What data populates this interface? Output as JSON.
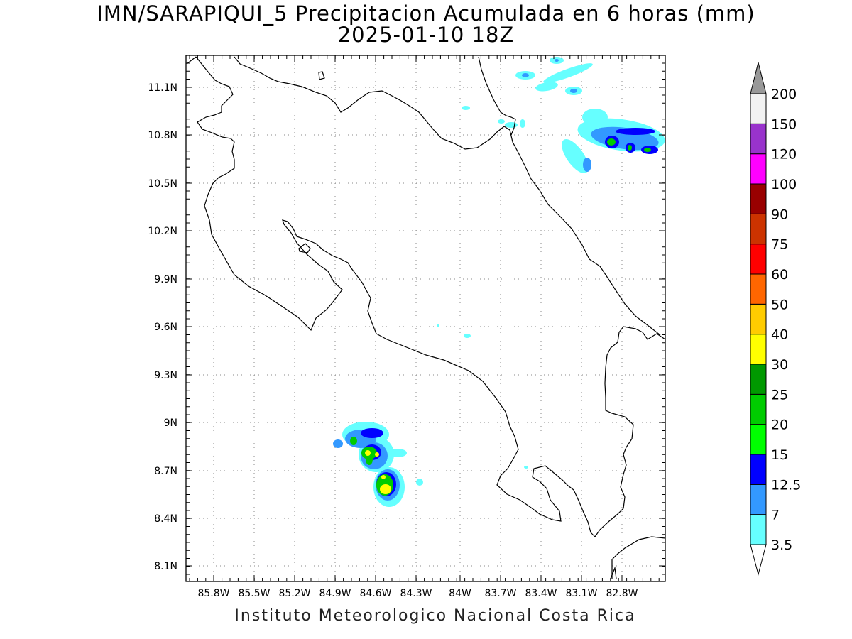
{
  "title": {
    "line1": "IMN/SARAPIQUI_5 Precipitacion Acumulada en 6 horas (mm)",
    "line2": "2025-01-10 18Z"
  },
  "footer": "Instituto Meteorologico Nacional Costa Rica",
  "map": {
    "lon_range": [
      -86.18,
      -82.55
    ],
    "lat_range": [
      8.01,
      11.33
    ],
    "lon_ticks": [
      "85.8W",
      "85.5W",
      "85.2W",
      "84.9W",
      "84.6W",
      "84.3W",
      "84W",
      "83.7W",
      "83.4W",
      "83.1W",
      "82.8W"
    ],
    "lat_ticks": [
      "11.1N",
      "10.8N",
      "10.5N",
      "10.2N",
      "9.9N",
      "9.6N",
      "9.3N",
      "9N",
      "8.7N",
      "8.4N",
      "8.1N"
    ],
    "grid": true,
    "coastline_color": "#000000"
  },
  "colorbar": {
    "levels": [
      "3.5",
      "7",
      "12.5",
      "15",
      "20",
      "25",
      "30",
      "40",
      "50",
      "60",
      "75",
      "90",
      "100",
      "120",
      "150",
      "200"
    ],
    "colors": [
      "#66ffff",
      "#3399ff",
      "#0000ff",
      "#00ff00",
      "#00cc00",
      "#009900",
      "#ffff00",
      "#ffcc00",
      "#ff6600",
      "#ff0000",
      "#cc3300",
      "#990000",
      "#ff00ff",
      "#9933cc",
      "#f2f2f2",
      "#999999"
    ],
    "under_color": "#ffffff",
    "over_color": "#999999"
  }
}
